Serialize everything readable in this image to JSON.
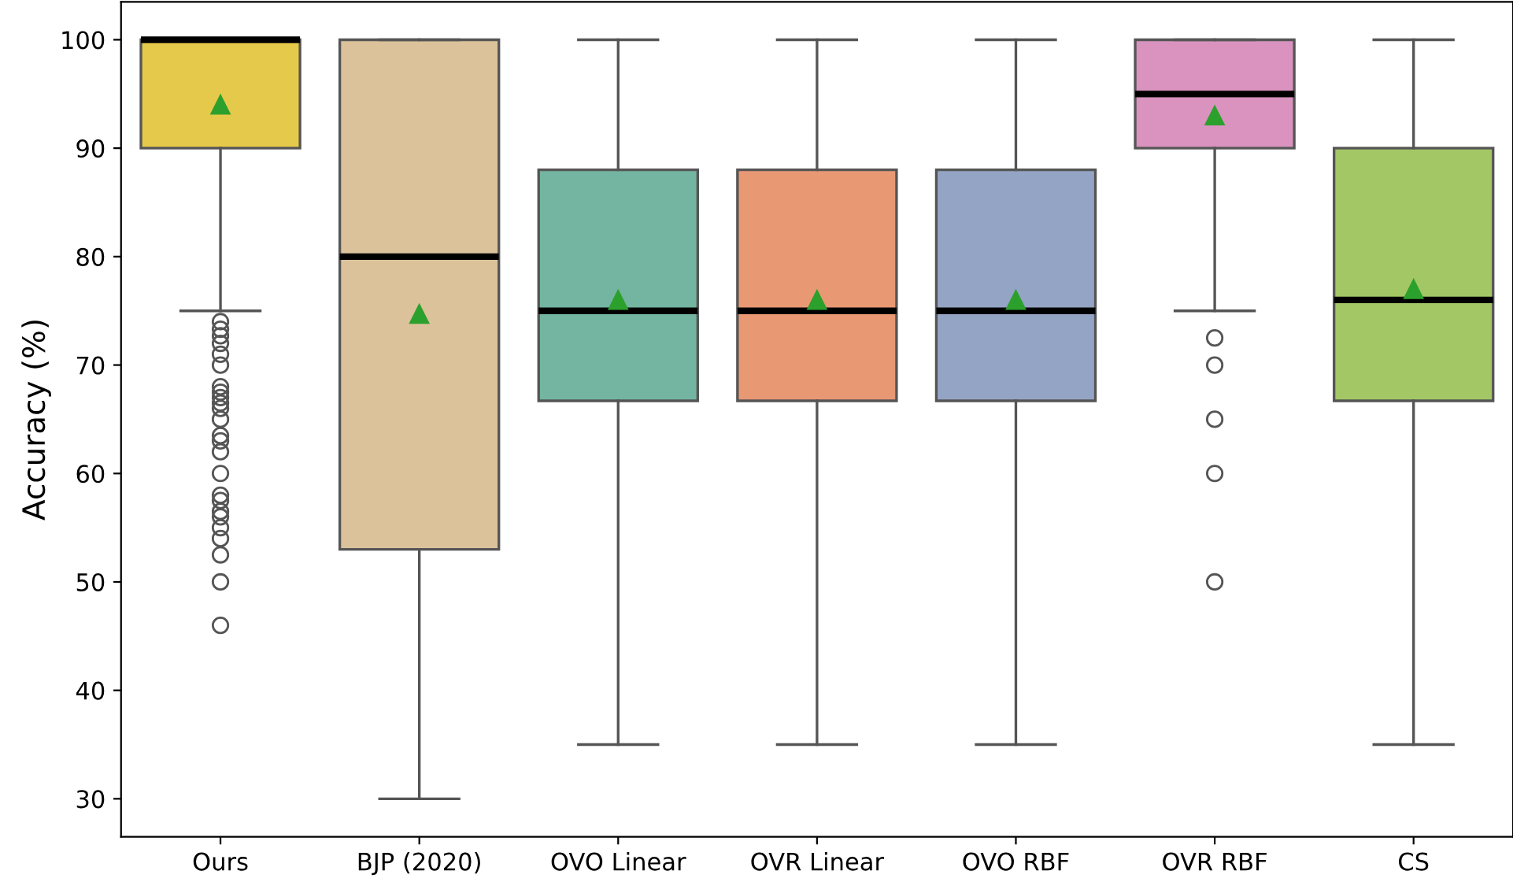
{
  "chart_data": {
    "type": "box",
    "ylabel": "Accuracy (%)",
    "categories": [
      "Ours",
      "BJP (2020)",
      "OVO Linear",
      "OVR Linear",
      "OVO RBF",
      "OVR RBF",
      "CS"
    ],
    "colors": [
      "#e5c94a",
      "#dbc29b",
      "#73b5a1",
      "#e89974",
      "#94a4c4",
      "#d993be",
      "#a3c765"
    ],
    "boxes": [
      {
        "low": 75,
        "q1": 90,
        "median": 100,
        "q3": 100,
        "high": 100,
        "mean": 94,
        "outliers": [
          74,
          73.3,
          72.7,
          72,
          71,
          70,
          68,
          67.5,
          67,
          66.5,
          66,
          65,
          63.5,
          63,
          62,
          60,
          58,
          57.5,
          56.5,
          56,
          55,
          54,
          52.5,
          50,
          46
        ]
      },
      {
        "low": 30,
        "q1": 53,
        "median": 80,
        "q3": 100,
        "high": 100,
        "mean": 74.7
      },
      {
        "low": 35,
        "q1": 66.7,
        "median": 75,
        "q3": 88,
        "high": 100,
        "mean": 76
      },
      {
        "low": 35,
        "q1": 66.7,
        "median": 75,
        "q3": 88,
        "high": 100,
        "mean": 76
      },
      {
        "low": 35,
        "q1": 66.7,
        "median": 75,
        "q3": 88,
        "high": 100,
        "mean": 76
      },
      {
        "low": 75,
        "q1": 90,
        "median": 95,
        "q3": 100,
        "high": 100,
        "mean": 93,
        "outliers": [
          72.5,
          70,
          65,
          60,
          50
        ]
      },
      {
        "low": 35,
        "q1": 66.7,
        "median": 76,
        "q3": 90,
        "high": 100,
        "mean": 77
      }
    ],
    "ylim": [
      26.5,
      103.5
    ],
    "yticks": [
      30,
      40,
      50,
      60,
      70,
      80,
      90,
      100
    ],
    "grid": false
  }
}
